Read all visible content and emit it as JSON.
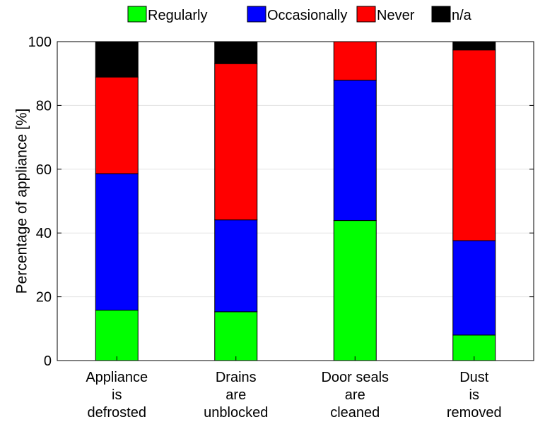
{
  "chart_data": {
    "type": "bar",
    "stacked": true,
    "categories": [
      [
        "Appliance",
        "is",
        "defrosted"
      ],
      [
        "Drains",
        "are",
        "unblocked"
      ],
      [
        "Door seals",
        "are",
        "cleaned"
      ],
      [
        "Dust",
        "is",
        "removed"
      ]
    ],
    "series": [
      {
        "name": "Regularly",
        "color": "#00ff00",
        "values": [
          15.8,
          15.3,
          43.9,
          8.0
        ]
      },
      {
        "name": "Occasionally",
        "color": "#0000ff",
        "values": [
          42.8,
          28.8,
          44.0,
          29.6
        ]
      },
      {
        "name": "Never",
        "color": "#ff0000",
        "values": [
          30.3,
          49.0,
          12.1,
          59.8
        ]
      },
      {
        "name": "n/a",
        "color": "#000000",
        "values": [
          11.1,
          6.9,
          0.0,
          2.6
        ]
      }
    ],
    "ylabel": "Percentage of appliance [%]",
    "xlabel": "",
    "ylim": [
      0,
      100
    ],
    "yticks": [
      "0",
      "20",
      "40",
      "60",
      "80",
      "100"
    ],
    "grid": "horizontal",
    "legend_position": "top"
  }
}
